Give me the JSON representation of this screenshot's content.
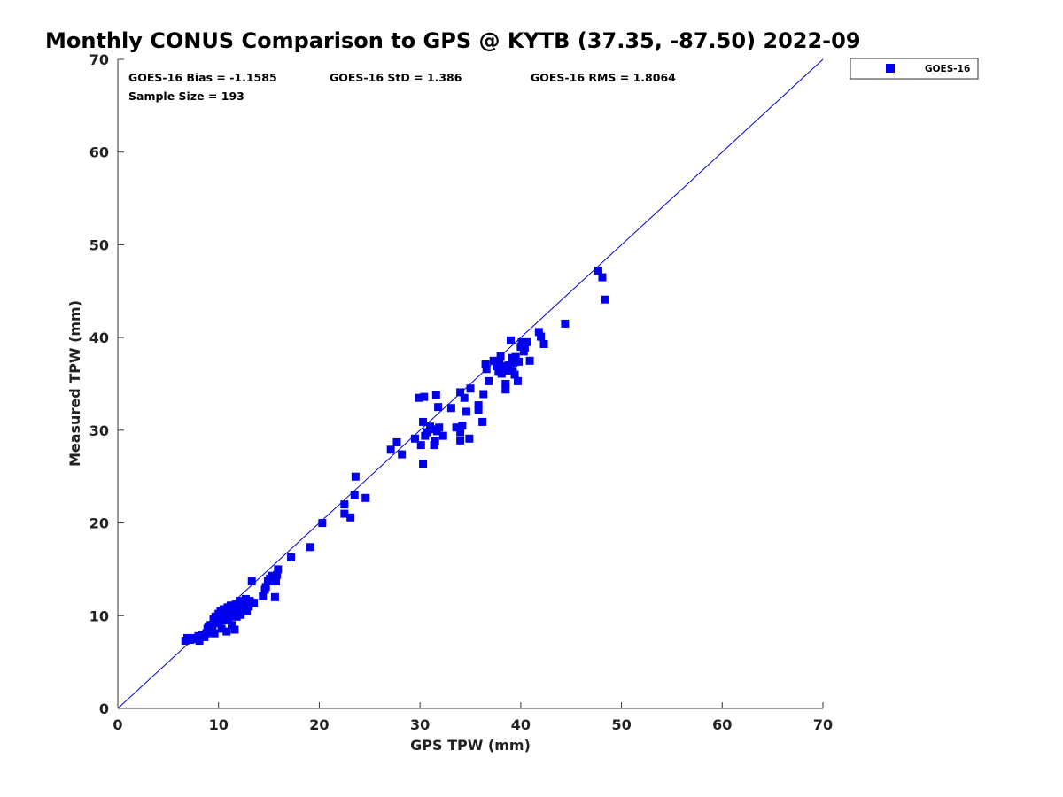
{
  "chart_data": {
    "type": "scatter",
    "title": "Monthly CONUS Comparison to GPS @ KYTB (37.35, -87.50) 2022-09",
    "xlabel": "GPS TPW (mm)",
    "ylabel": "Measured TPW (mm)",
    "xlim": [
      0,
      70
    ],
    "ylim": [
      0,
      70
    ],
    "xticks": [
      "0",
      "10",
      "20",
      "30",
      "40",
      "50",
      "60",
      "70"
    ],
    "yticks": [
      "0",
      "10",
      "20",
      "30",
      "40",
      "50",
      "60",
      "70"
    ],
    "grid": false,
    "legend_position": "top-right (outside plot)",
    "reference_line": {
      "type": "one-to-one",
      "from": [
        0,
        0
      ],
      "to": [
        70,
        70
      ],
      "color": "#0000cc"
    },
    "stats": {
      "bias": "GOES-16 Bias = -1.1585",
      "std": "GOES-16 StD = 1.386",
      "rms": "GOES-16 RMS = 1.8064",
      "sample_size": "Sample Size = 193"
    },
    "series": [
      {
        "name": "GOES-16",
        "color": "#0000ee",
        "marker": "square",
        "points": [
          [
            6.7,
            7.3
          ],
          [
            6.9,
            7.6
          ],
          [
            7.2,
            7.4
          ],
          [
            7.5,
            7.6
          ],
          [
            7.8,
            7.5
          ],
          [
            8.0,
            7.8
          ],
          [
            8.1,
            7.3
          ],
          [
            8.4,
            7.9
          ],
          [
            8.6,
            7.7
          ],
          [
            8.8,
            8.1
          ],
          [
            8.9,
            8.6
          ],
          [
            9.1,
            8.3
          ],
          [
            9.2,
            9.0
          ],
          [
            9.4,
            8.8
          ],
          [
            9.5,
            9.6
          ],
          [
            9.6,
            8.1
          ],
          [
            9.7,
            9.9
          ],
          [
            9.9,
            9.4
          ],
          [
            10.0,
            10.2
          ],
          [
            10.1,
            9.2
          ],
          [
            10.2,
            10.5
          ],
          [
            10.3,
            9.8
          ],
          [
            10.4,
            10.0
          ],
          [
            10.5,
            10.7
          ],
          [
            10.6,
            9.5
          ],
          [
            10.7,
            10.3
          ],
          [
            10.8,
            8.3
          ],
          [
            10.9,
            10.9
          ],
          [
            11.0,
            9.7
          ],
          [
            11.1,
            10.4
          ],
          [
            11.2,
            11.1
          ],
          [
            11.3,
            9.0
          ],
          [
            11.4,
            10.0
          ],
          [
            11.5,
            10.6
          ],
          [
            11.6,
            8.5
          ],
          [
            11.7,
            11.2
          ],
          [
            11.8,
            9.9
          ],
          [
            11.9,
            10.8
          ],
          [
            12.0,
            10.3
          ],
          [
            12.1,
            11.6
          ],
          [
            12.2,
            10.1
          ],
          [
            12.3,
            11.0
          ],
          [
            12.4,
            10.6
          ],
          [
            12.5,
            11.4
          ],
          [
            12.6,
            10.9
          ],
          [
            12.7,
            11.8
          ],
          [
            12.8,
            10.5
          ],
          [
            12.9,
            11.3
          ],
          [
            13.0,
            11.0
          ],
          [
            13.1,
            11.6
          ],
          [
            13.3,
            13.7
          ],
          [
            13.5,
            11.4
          ],
          [
            10.3,
            8.6
          ],
          [
            10.6,
            10.1
          ],
          [
            9.8,
            9.7
          ],
          [
            11.0,
            10.8
          ],
          [
            11.4,
            11.0
          ],
          [
            10.2,
            9.9
          ],
          [
            12.6,
            11.1
          ],
          [
            9.0,
            8.8
          ],
          [
            14.4,
            12.1
          ],
          [
            14.6,
            12.8
          ],
          [
            14.7,
            13.1
          ],
          [
            14.9,
            13.7
          ],
          [
            15.1,
            14.0
          ],
          [
            15.3,
            14.3
          ],
          [
            15.6,
            12.0
          ],
          [
            15.7,
            13.7
          ],
          [
            15.8,
            14.4
          ],
          [
            15.9,
            15.0
          ],
          [
            17.2,
            16.3
          ],
          [
            19.1,
            17.4
          ],
          [
            20.3,
            20.0
          ],
          [
            22.5,
            21.0
          ],
          [
            22.5,
            22.0
          ],
          [
            23.1,
            20.6
          ],
          [
            23.5,
            23.0
          ],
          [
            23.6,
            25.0
          ],
          [
            24.6,
            22.7
          ],
          [
            27.1,
            27.9
          ],
          [
            27.7,
            28.7
          ],
          [
            28.2,
            27.4
          ],
          [
            29.5,
            29.1
          ],
          [
            29.9,
            33.5
          ],
          [
            30.1,
            28.4
          ],
          [
            30.3,
            26.4
          ],
          [
            30.3,
            30.9
          ],
          [
            30.4,
            33.6
          ],
          [
            30.5,
            29.4
          ],
          [
            30.7,
            29.8
          ],
          [
            31.0,
            30.4
          ],
          [
            31.2,
            30.1
          ],
          [
            31.4,
            28.4
          ],
          [
            31.5,
            28.8
          ],
          [
            31.6,
            33.8
          ],
          [
            31.7,
            29.9
          ],
          [
            31.8,
            32.5
          ],
          [
            31.9,
            30.3
          ],
          [
            32.3,
            29.4
          ],
          [
            33.1,
            32.4
          ],
          [
            33.6,
            30.3
          ],
          [
            34.0,
            34.1
          ],
          [
            34.0,
            28.9
          ],
          [
            34.0,
            29.8
          ],
          [
            34.2,
            30.5
          ],
          [
            34.4,
            33.5
          ],
          [
            34.6,
            32.0
          ],
          [
            34.9,
            29.1
          ],
          [
            35.0,
            34.5
          ],
          [
            35.8,
            32.7
          ],
          [
            35.8,
            32.2
          ],
          [
            36.2,
            30.9
          ],
          [
            36.3,
            33.9
          ],
          [
            36.5,
            37.1
          ],
          [
            36.6,
            36.6
          ],
          [
            36.8,
            35.3
          ],
          [
            37.3,
            37.5
          ],
          [
            37.6,
            36.9
          ],
          [
            37.8,
            36.3
          ],
          [
            37.9,
            37.3
          ],
          [
            38.0,
            38.0
          ],
          [
            38.1,
            36.1
          ],
          [
            38.3,
            36.9
          ],
          [
            38.5,
            34.4
          ],
          [
            38.5,
            35.0
          ],
          [
            38.6,
            36.4
          ],
          [
            38.8,
            37.0
          ],
          [
            39.0,
            39.7
          ],
          [
            39.0,
            36.8
          ],
          [
            39.1,
            37.8
          ],
          [
            39.2,
            36.4
          ],
          [
            39.3,
            37.3
          ],
          [
            39.4,
            36.0
          ],
          [
            39.5,
            37.9
          ],
          [
            39.7,
            35.3
          ],
          [
            39.8,
            37.4
          ],
          [
            40.0,
            39.0
          ],
          [
            40.1,
            39.5
          ],
          [
            40.3,
            38.5
          ],
          [
            40.4,
            38.9
          ],
          [
            40.6,
            39.5
          ],
          [
            40.9,
            37.5
          ],
          [
            41.8,
            40.6
          ],
          [
            42.0,
            40.1
          ],
          [
            42.3,
            39.3
          ],
          [
            44.4,
            41.5
          ],
          [
            47.7,
            47.2
          ],
          [
            48.1,
            46.5
          ],
          [
            48.4,
            44.1
          ]
        ]
      }
    ]
  },
  "legend": {
    "label": "GOES-16",
    "color": "#0000ee"
  }
}
